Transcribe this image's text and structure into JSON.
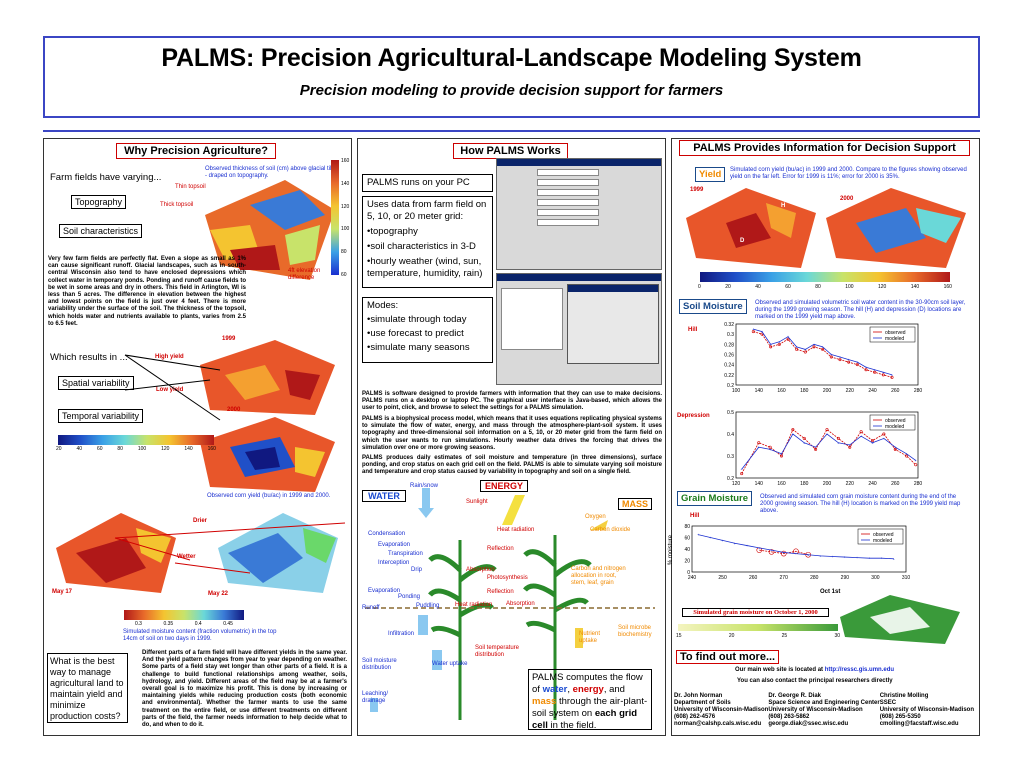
{
  "header": {
    "title": "PALMS: Precision Agricultural-Landscape Modeling System",
    "subtitle": "Precision modeling to provide decision support for farmers"
  },
  "left": {
    "title": "Why Precision Agriculture?",
    "farm_fields": "Farm fields have varying...",
    "topography": "Topography",
    "soil_characteristics": "Soil characteristics",
    "thin_topsoil": "Thin topsoil",
    "thick_topsoil": "Thick topsoil",
    "elev_label": "4ft elevation difference",
    "map_caption": "Observed thickness of soil (cm) above glacial till - draped on topography.",
    "colorbar_ticks": [
      "160",
      "140",
      "120",
      "100",
      "80",
      "60"
    ],
    "para": "Very few farm fields are perfectly flat. Even a slope as small as 1% can cause significant runoff. Glacial landscapes, such as in south-central Wisconsin also tend to have enclosed depressions which collect water in temporary ponds. Ponding and runoff cause fields to be wet in some areas and dry in others. This field in Arlington, WI is less than 5 acres. The difference in elevation between the highest and lowest points on the field is just over 4 feet. There is more variability under the surface of the soil. The thickness of the topsoil, which holds water and nutrients available to plants, varies from 2.5 to 6.5 feet.",
    "which_results": "Which results in ...",
    "high_yield": "High yield",
    "low_yield": "Low yield",
    "spatial_var": "Spatial variability",
    "temporal_var": "Temporal variability",
    "year1999": "1999",
    "year2000": "2000",
    "yield_ticks": [
      "20",
      "40",
      "60",
      "80",
      "100",
      "120",
      "140",
      "160"
    ],
    "yield_caption": "Observed corn yield (bu/ac) in 1999 and 2000.",
    "drier": "Drier",
    "wetter": "Wetter",
    "may17": "May 17",
    "may22": "May 22",
    "moist_ticks": [
      "0.3",
      "0.35",
      "0.4",
      "0.45"
    ],
    "moist_caption": "Simulated moisture content (fraction volumetric) in the top 14cm of soil on two days in 1999.",
    "question": "What is the best way to manage agricultural land to maintain yield and minimize production costs?",
    "bottom_para": "Different parts of a farm field will have different yields in the same year. And the yield pattern changes from year to year depending on weather. Some parts of a field stay wet longer than other parts of a field. It is a challenge to build functional relationships among weather, soils, hydrology, and yield. Different areas of the field may be at a farmer's overall goal is to maximize his profit. This is done by increasing or maintaining yields while reducing production costs (both economic and environmental). Whether the farmer wants to use the same treatment on the entire field, or use different treatments on different parts of the field, the farmer needs information to help decide what to do, and when to do it."
  },
  "middle": {
    "title": "How PALMS Works",
    "runs_on_pc": "PALMS runs on your PC",
    "uses_data": "Uses data from farm field on 5, 10, or 20 meter grid:",
    "bullets": [
      "•topography",
      "•soil characteristics in 3-D",
      "•hourly weather (wind, sun, temperature, humidity, rain)"
    ],
    "modes_title": "Modes:",
    "modes": [
      "•simulate through today",
      "•use forecast to predict",
      "•simulate many seasons"
    ],
    "para1": "PALMS is software designed to provide farmers with information that they can use to make decisions. PALMS runs on a desktop or laptop PC. The graphical user interface is Java-based, which allows the user to point, click, and browse to select the settings for a PALMS simulation.",
    "para2": "PALMS is a biophysical process model, which means that it uses equations replicating physical systems to simulate the flow of water, energy, and mass through the atmosphere-plant-soil system. It uses topography and three-dimensional soil information on a 5, 10, or 20 meter grid from the farm field on which the user wants to run simulations. Hourly weather data drives the forcing that drives the simulation over one or more growing seasons.",
    "para3": "PALMS produces daily estimates of soil moisture and temperature (in three dimensions), surface ponding, and crop status on each grid cell on the field. PALMS is able to simulate varying soil moisture and temperature and crop status caused by variability in topography and soil on a single field.",
    "water": "WATER",
    "energy": "ENERGY",
    "mass": "MASS",
    "rain_snow": "Rain/snow",
    "sunlight": "Sunlight",
    "oxygen": "Oxygen",
    "co2": "Carbon dioxide",
    "condensation": "Condensation",
    "evaporation": "Evaporation",
    "transpiration": "Transpiration",
    "interception": "Interception",
    "drip": "Drip",
    "heat_radiation": "Heat radiation",
    "reflection": "Reflection",
    "absorption": "Absorption",
    "photosynthesis": "Photosynthesis",
    "carbon_alloc": "Carbon and nitrogen allocation in root, stem, leaf, grain",
    "evaporation2": "Evaporation",
    "runoff": "Runoff",
    "ponding": "Ponding",
    "puddling": "Puddling",
    "heat_radiation2": "Heat radiation",
    "reflection2": "Reflection",
    "absorption2": "Absorption",
    "infiltration": "Infiltration",
    "soil_moist_dist": "Soil moisture distribution",
    "water_uptake": "Water uptake",
    "soil_temp_dist": "Soil temperature distribution",
    "nutrient_uptake": "Nutrient uptake",
    "soil_microbe": "Soil microbe biochemistry",
    "leaching": "Leaching/ drainage",
    "computes_pre": "PALMS computes the flow of ",
    "computes_water": "water",
    "computes_sep": ", ",
    "computes_energy": "energy",
    "computes_and": ", and ",
    "computes_mass": "mass",
    "computes_mid": " through the air-plant-soil system on ",
    "computes_bold": "each grid cell",
    "computes_end": " in the field."
  },
  "right": {
    "title": "PALMS Provides Information for Decision Support",
    "yield_label": "Yield",
    "yield_caption": "Simulated corn yield (bu/ac) in 1999 and 2000. Compare to the figures showing observed yield on the far left. Error for 1999 is 11%; error for 2000 is 35%.",
    "y1999": "1999",
    "y2000": "2000",
    "h_marker": "H",
    "d_marker": "D",
    "yield_ticks": [
      "0",
      "20",
      "40",
      "60",
      "80",
      "100",
      "120",
      "140",
      "160"
    ],
    "soil_moist_label": "Soil Moisture",
    "soil_moist_caption": "Observed and simulated volumetric soil water content in the 30-90cm soil layer, during the 1999 growing season. The hill (H) and depression (D) locations are marked on the 1999 yield map above.",
    "hill": "Hill",
    "depression": "Depression",
    "grain_label": "Grain Moisture",
    "grain_caption": "Observed and simulated corn grain moisture content during the end of the 2000 growing season. The hill (H) location is marked on the 1999 yield map above.",
    "hill2": "Hill",
    "observed": "observed",
    "modeled": "modeled",
    "pct_moisture": "% moisture",
    "oct1": "Oct 1st",
    "sim_grain": "Simulated grain moisture on October 1, 2000",
    "grain_ticks": [
      "15",
      "20",
      "25",
      "30"
    ],
    "find_more": "To find out more...",
    "web_pre": "Our main web site is located at ",
    "web_url": "http://ressc.gis.umn.edu",
    "contact": "You can also contact the principal researchers directly",
    "contacts": [
      [
        "Dr. John Norman",
        "Department of Soils",
        "University of Wisconsin-Madison",
        "(608) 262-4576",
        "norman@calshp.cals.wisc.edu"
      ],
      [
        "Dr. George R. Diak",
        "Space Science and Engineering Center",
        "University of Wisconsin-Madison",
        "(608) 263-5862",
        "george.diak@ssec.wisc.edu"
      ],
      [
        "Christine Molling",
        "SSEC",
        "University of Wisconsin-Madison",
        "(608) 265-5350",
        "cmolling@facstaff.wisc.edu"
      ]
    ]
  },
  "chart_data": [
    {
      "type": "line",
      "title": "",
      "xlabel": "",
      "ylabel": "",
      "xlim": [
        100,
        310
      ],
      "ylim": [
        0.2,
        0.32
      ],
      "x_ticks": [
        "100",
        "140",
        "160",
        "180",
        "200",
        "220",
        "240",
        "260",
        "280"
      ],
      "y_ticks": [
        "0.32",
        "0.3",
        "0.28",
        "0.26",
        "0.24",
        "0.22",
        "0.2"
      ],
      "series": [
        {
          "name": "observed",
          "x": [
            120,
            130,
            140,
            150,
            160,
            170,
            180,
            190,
            200,
            210,
            220,
            230,
            240,
            250,
            260,
            270,
            280
          ],
          "values": [
            0.305,
            0.3,
            0.275,
            0.28,
            0.29,
            0.27,
            0.265,
            0.275,
            0.27,
            0.255,
            0.25,
            0.245,
            0.24,
            0.23,
            0.225,
            0.22,
            0.215
          ]
        },
        {
          "name": "modeled",
          "x": [
            120,
            130,
            140,
            150,
            160,
            170,
            180,
            190,
            200,
            210,
            220,
            230,
            240,
            250,
            260,
            270,
            280
          ],
          "values": [
            0.31,
            0.305,
            0.28,
            0.285,
            0.295,
            0.275,
            0.27,
            0.28,
            0.275,
            0.26,
            0.255,
            0.25,
            0.245,
            0.235,
            0.23,
            0.225,
            0.22
          ]
        }
      ]
    },
    {
      "type": "line",
      "title": "",
      "xlim": [
        120,
        280
      ],
      "ylim": [
        0.2,
        0.5
      ],
      "x_ticks": [
        "120",
        "140",
        "160",
        "180",
        "200",
        "220",
        "240",
        "260",
        "280"
      ],
      "y_ticks": [
        "0.5",
        "0.4",
        "0.3",
        "0.2"
      ],
      "series": [
        {
          "name": "observed",
          "x": [
            125,
            140,
            150,
            160,
            170,
            180,
            190,
            200,
            210,
            220,
            230,
            240,
            250,
            260,
            270,
            278
          ],
          "values": [
            0.22,
            0.36,
            0.34,
            0.3,
            0.42,
            0.38,
            0.33,
            0.42,
            0.38,
            0.34,
            0.41,
            0.37,
            0.4,
            0.33,
            0.3,
            0.26
          ]
        },
        {
          "name": "modeled",
          "x": [
            125,
            140,
            150,
            160,
            170,
            180,
            190,
            200,
            210,
            220,
            230,
            240,
            250,
            260,
            270,
            278
          ],
          "values": [
            0.24,
            0.34,
            0.33,
            0.31,
            0.4,
            0.36,
            0.34,
            0.4,
            0.36,
            0.35,
            0.39,
            0.36,
            0.38,
            0.34,
            0.31,
            0.28
          ]
        }
      ]
    },
    {
      "type": "line",
      "title": "",
      "xlim": [
        240,
        310
      ],
      "ylim": [
        0,
        80
      ],
      "x_ticks": [
        "240",
        "250",
        "260",
        "270",
        "280",
        "290",
        "300",
        "310"
      ],
      "y_ticks": [
        "80",
        "60",
        "40",
        "20",
        "0"
      ],
      "series": [
        {
          "name": "observed",
          "x": [
            262,
            266,
            270,
            274,
            278
          ],
          "values": [
            38,
            35,
            32,
            36,
            30
          ]
        },
        {
          "name": "modeled",
          "x": [
            242,
            246,
            250,
            254,
            258,
            262,
            266,
            270,
            274,
            278,
            282,
            286,
            290,
            294,
            298,
            302,
            306
          ],
          "values": [
            65,
            60,
            55,
            50,
            46,
            42,
            38,
            34,
            32,
            30,
            28,
            27,
            26,
            25,
            24,
            24,
            23
          ]
        }
      ]
    }
  ]
}
